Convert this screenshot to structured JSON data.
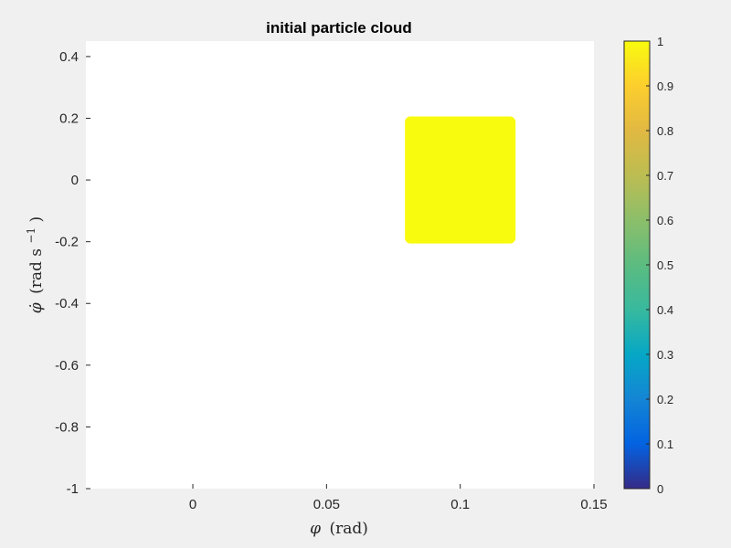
{
  "chart_data": {
    "type": "scatter",
    "title": "initial particle cloud",
    "xlabel": {
      "symbol": "φ",
      "unit": "(rad)"
    },
    "ylabel": {
      "symbol": "φ̇",
      "unit_open": "(rad s",
      "unit_exp": "−1",
      "unit_close": ")"
    },
    "xlim": [
      -0.04,
      0.15
    ],
    "ylim": [
      -1,
      0.45
    ],
    "xticks": [
      0,
      0.05,
      0.1,
      0.15
    ],
    "xtick_labels": [
      "0",
      "0.05",
      "0.1",
      "0.15"
    ],
    "yticks": [
      0.4,
      0.2,
      0,
      -0.2,
      -0.4,
      -0.6,
      -0.8,
      -1
    ],
    "ytick_labels": [
      "0.4",
      "0.2",
      "0",
      "-0.2",
      "-0.4",
      "-0.6",
      "-0.8",
      "-1"
    ],
    "grid": false,
    "point_cloud": {
      "x_range": [
        0.08,
        0.12
      ],
      "y_range": [
        -0.2,
        0.2
      ],
      "color_value": 1,
      "color": "#f9fb0e"
    },
    "colorbar": {
      "range": [
        0,
        1
      ],
      "ticks": [
        0,
        0.1,
        0.2,
        0.3,
        0.4,
        0.5,
        0.6,
        0.7,
        0.8,
        0.9,
        1
      ],
      "tick_labels": [
        "0",
        "0.1",
        "0.2",
        "0.3",
        "0.4",
        "0.5",
        "0.6",
        "0.7",
        "0.8",
        "0.9",
        "1"
      ],
      "colormap": "parula"
    }
  }
}
